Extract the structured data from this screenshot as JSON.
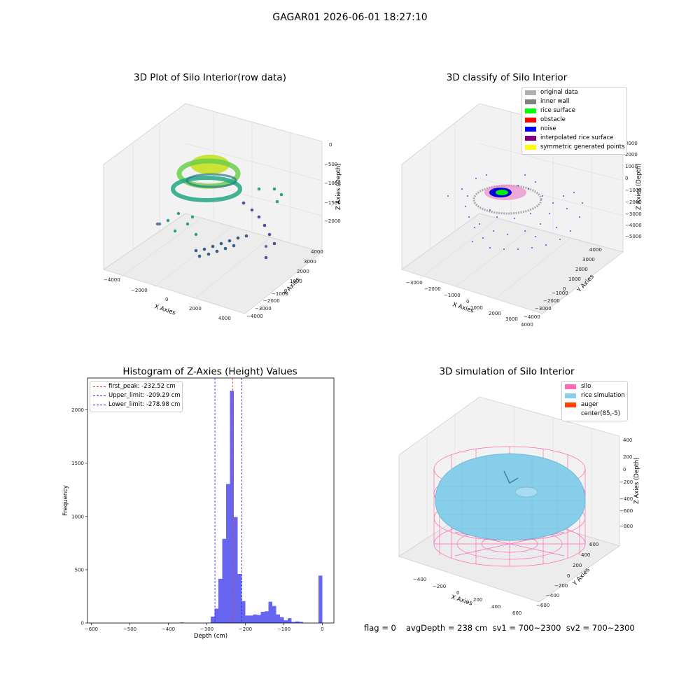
{
  "suptitle": "GAGAR01 2026-06-01 18:27:10",
  "colors": {
    "original": "#b0b0b0",
    "wall": "#808080",
    "rice": "#00ff00",
    "obstacle": "#ff0000",
    "noise": "#0000ff",
    "interp": "#800080",
    "sym": "#ffff00",
    "silo": "#ff69b4",
    "rice_sim": "#87ceeb",
    "auger": "#ff4500",
    "hist_bar": "#5555ee",
    "peak_line": "#ff3333",
    "limit_line": "#2222ff"
  },
  "plot1": {
    "title": "3D Plot of Silo Interior(row data)",
    "xlabel": "X Axies",
    "ylabel": "Y Axies",
    "zlabel": "Z Axies (Depth)",
    "xticks": [
      "−4000",
      "−2000",
      "0",
      "2000",
      "4000"
    ],
    "yticks": [
      "4000",
      "3000",
      "2000",
      "1000",
      "0",
      "−1000",
      "−2000",
      "−3000",
      "−4000"
    ],
    "zticks": [
      "0",
      "−500",
      "−1000",
      "−1500",
      "−2000"
    ]
  },
  "plot2": {
    "title": "3D classify of Silo Interior",
    "xlabel": "X Axies",
    "ylabel": "Y Axies",
    "zlabel": "Z Axies (Depth)",
    "xticks": [
      "−3000",
      "−2000",
      "−1000",
      "0",
      "1000",
      "2000",
      "3000",
      "4000"
    ],
    "yticks": [
      "4000",
      "3000",
      "2000",
      "1000",
      "0",
      "−1000",
      "−2000",
      "−3000",
      "−4000"
    ],
    "zticks": [
      "3000",
      "2000",
      "1000",
      "0",
      "−1000",
      "−2000",
      "−3000",
      "−4000",
      "−5000"
    ],
    "legend": [
      "original data",
      "inner wall",
      "rice surface",
      "obstacle",
      "noise",
      "interpolated rice surface",
      "symmetric generated points"
    ]
  },
  "plot4": {
    "title": "3D simulation of Silo Interior",
    "xlabel": "X Axies",
    "ylabel": "Y Axies",
    "zlabel": "Z Axies (Depth)",
    "xticks": [
      "−400",
      "−200",
      "0",
      "200",
      "400",
      "600"
    ],
    "yticks": [
      "600",
      "400",
      "200",
      "0",
      "−200",
      "−400",
      "−600"
    ],
    "zticks": [
      "400",
      "200",
      "0",
      "−200",
      "−400",
      "−600",
      "−800"
    ],
    "legend": [
      "silo",
      "rice simulation",
      "auger",
      "center(85,-5)"
    ]
  },
  "footer": {
    "flag": "flag = 0",
    "stats": "avgDepth = 238 cm  sv1 = 700~2300  sv2 = 700~2300"
  },
  "chart_data": [
    {
      "type": "bar",
      "title": "Histogram of Z-Axies (Height) Values",
      "xlabel": "Depth (cm)",
      "ylabel": "Frequency",
      "xlim": [
        -610,
        30
      ],
      "ylim": [
        0,
        2300
      ],
      "xticks": [
        -600,
        -500,
        -400,
        -300,
        -200,
        -100,
        0
      ],
      "yticks": [
        0,
        500,
        1000,
        1500,
        2000
      ],
      "bin_width": 10,
      "bins": [
        {
          "x0": -370,
          "value": 5
        },
        {
          "x0": -290,
          "value": 60
        },
        {
          "x0": -280,
          "value": 135
        },
        {
          "x0": -270,
          "value": 415
        },
        {
          "x0": -260,
          "value": 790
        },
        {
          "x0": -250,
          "value": 1305
        },
        {
          "x0": -240,
          "value": 2180
        },
        {
          "x0": -230,
          "value": 995
        },
        {
          "x0": -220,
          "value": 460
        },
        {
          "x0": -210,
          "value": 205
        },
        {
          "x0": -200,
          "value": 70
        },
        {
          "x0": -190,
          "value": 70
        },
        {
          "x0": -180,
          "value": 80
        },
        {
          "x0": -170,
          "value": 75
        },
        {
          "x0": -160,
          "value": 105
        },
        {
          "x0": -150,
          "value": 110
        },
        {
          "x0": -140,
          "value": 200
        },
        {
          "x0": -130,
          "value": 160
        },
        {
          "x0": -120,
          "value": 80
        },
        {
          "x0": -110,
          "value": 55
        },
        {
          "x0": -100,
          "value": 25
        },
        {
          "x0": -90,
          "value": 45
        },
        {
          "x0": -80,
          "value": 10
        },
        {
          "x0": -70,
          "value": 15
        },
        {
          "x0": -60,
          "value": 10
        },
        {
          "x0": -10,
          "value": 445
        }
      ],
      "vlines": [
        {
          "label": "first_peak: -232.52 cm",
          "x": -232.52,
          "color": "#ff3333"
        },
        {
          "label": "Upper_limit: -209.29 cm",
          "x": -209.29,
          "color": "#2222ff"
        },
        {
          "label": "Lower_limit: -278.98 cm",
          "x": -278.98,
          "color": "#2222ff"
        }
      ]
    }
  ]
}
